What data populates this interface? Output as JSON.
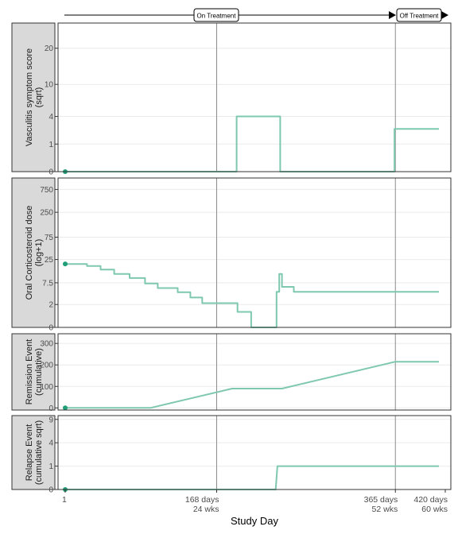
{
  "chart_data": {
    "type": "line",
    "xlabel": "Study Day",
    "x_ticks": [
      {
        "value": 1,
        "label": "1",
        "sub": ""
      },
      {
        "value": 168,
        "label": "168 days",
        "sub": "24 wks"
      },
      {
        "value": 365,
        "label": "365 days",
        "sub": "52 wks"
      },
      {
        "value": 420,
        "label": "420 days",
        "sub": "60 wks"
      }
    ],
    "xlim": [
      0,
      420
    ],
    "reference_lines": [
      168,
      365
    ],
    "line_color": "#7fc8b0",
    "point_color": "#1f9e77",
    "timeline": {
      "start_day": 0,
      "end_day": 420,
      "labels": [
        {
          "day": 168,
          "text": "On Treatment"
        },
        {
          "day": 365,
          "text": "Off Treatment"
        }
      ]
    },
    "panels": [
      {
        "strip_lines": [
          "Vasculitis symptom score",
          "(sqrt)"
        ],
        "scale": "sqrt",
        "y_ticks": [
          0,
          1,
          4,
          10,
          20
        ],
        "ylim": [
          0,
          29
        ],
        "step": [
          [
            1,
            0
          ],
          [
            190,
            0
          ],
          [
            190,
            4
          ],
          [
            238,
            4
          ],
          [
            238,
            0
          ],
          [
            364,
            0
          ],
          [
            364,
            2.4
          ],
          [
            413,
            2.4
          ]
        ],
        "points": [
          [
            1,
            0
          ]
        ]
      },
      {
        "strip_lines": [
          "Oral Corticosteroid dose",
          "(log+1)"
        ],
        "scale": "log1p",
        "y_ticks": [
          0,
          2,
          7.5,
          25,
          75,
          250,
          750
        ],
        "ylim": [
          0,
          1300
        ],
        "step": [
          [
            1,
            20
          ],
          [
            25,
            20
          ],
          [
            25,
            18
          ],
          [
            40,
            18
          ],
          [
            40,
            15
          ],
          [
            55,
            15
          ],
          [
            55,
            12
          ],
          [
            72,
            12
          ],
          [
            72,
            9.7
          ],
          [
            89,
            9.7
          ],
          [
            89,
            7.2
          ],
          [
            103,
            7.2
          ],
          [
            103,
            5.6
          ],
          [
            125,
            5.6
          ],
          [
            125,
            4.4
          ],
          [
            139,
            4.4
          ],
          [
            139,
            3.2
          ],
          [
            152,
            3.2
          ],
          [
            152,
            2.2
          ],
          [
            168,
            2.2
          ],
          [
            168,
            2.2
          ],
          [
            191,
            2.2
          ],
          [
            191,
            1.1
          ],
          [
            206,
            1.1
          ],
          [
            206,
            0
          ],
          [
            234,
            0
          ],
          [
            234,
            4.5
          ],
          [
            237,
            4.5
          ],
          [
            237,
            12
          ],
          [
            240,
            12
          ],
          [
            240,
            6
          ],
          [
            253,
            6
          ],
          [
            253,
            4.5
          ],
          [
            413,
            4.5
          ]
        ],
        "points": [
          [
            1,
            20
          ]
        ]
      },
      {
        "strip_lines": [
          "Remission Event",
          "(cumulative)"
        ],
        "scale": "linear",
        "y_ticks": [
          0,
          100,
          200,
          300
        ],
        "ylim": [
          -10,
          345
        ],
        "step": [
          [
            1,
            0
          ],
          [
            95,
            0
          ],
          [
            185,
            90
          ],
          [
            240,
            90
          ],
          [
            365,
            215
          ],
          [
            413,
            215
          ]
        ],
        "points": [
          [
            1,
            0
          ]
        ]
      },
      {
        "strip_lines": [
          "Relapse Event",
          "(cumulative sqrt)"
        ],
        "scale": "sqrt",
        "y_ticks": [
          0,
          1,
          4,
          9
        ],
        "ylim": [
          0,
          10
        ],
        "step": [
          [
            1,
            0
          ],
          [
            233,
            0
          ],
          [
            235,
            1
          ],
          [
            413,
            1
          ]
        ],
        "points": [
          [
            1,
            0
          ]
        ]
      }
    ]
  }
}
